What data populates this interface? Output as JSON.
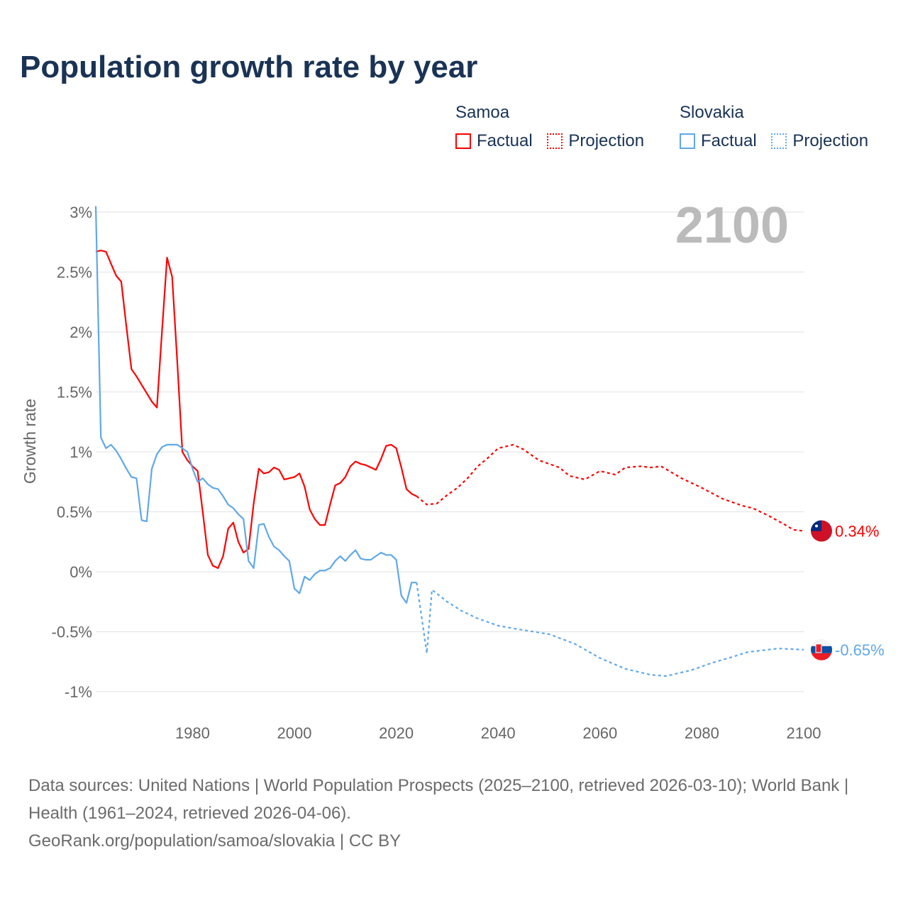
{
  "title": "Population growth rate by year",
  "legend": {
    "groups": [
      {
        "name": "Samoa",
        "color": "#ff0000",
        "factual": "Factual",
        "projection": "Projection"
      },
      {
        "name": "Slovakia",
        "color": "#5fa8ea",
        "factual": "Factual",
        "projection": "Projection"
      }
    ]
  },
  "footer": {
    "sources": "Data sources: United Nations | World Population Prospects (2025–2100, retrieved 2026-03-10); World Bank | Health (1961–2024, retrieved 2026-04-06).",
    "link": "GeoRank.org/population/samoa/slovakia | CC BY"
  },
  "chart_data": {
    "type": "line",
    "title": "Population growth rate by year",
    "ylabel": "Growth rate",
    "xlabel": "",
    "year_label": "2100",
    "xlim": [
      1961,
      2100
    ],
    "ylim": [
      -1.1,
      3.05
    ],
    "x_ticks": [
      "1980",
      "2000",
      "2020",
      "2040",
      "2060",
      "2080",
      "2100"
    ],
    "x_tick_values": [
      1980,
      2000,
      2020,
      2040,
      2060,
      2080,
      2100
    ],
    "y_ticks": [
      "3%",
      "2.5%",
      "2%",
      "1.5%",
      "1%",
      "0.5%",
      "0%",
      "-0.5%",
      "-1%"
    ],
    "y_tick_values": [
      3,
      2.5,
      2,
      1.5,
      1,
      0.5,
      0,
      -0.5,
      -1
    ],
    "grid": true,
    "series": [
      {
        "name": "Samoa",
        "color": "#ff0000",
        "end_label": "0.34%",
        "factual": {
          "x": [
            1961,
            1962,
            1963,
            1964,
            1965,
            1966,
            1967,
            1968,
            1969,
            1970,
            1971,
            1972,
            1973,
            1974,
            1975,
            1976,
            1977,
            1978,
            1979,
            1980,
            1981,
            1982,
            1983,
            1984,
            1985,
            1986,
            1987,
            1988,
            1989,
            1990,
            1991,
            1992,
            1993,
            1994,
            1995,
            1996,
            1997,
            1998,
            1999,
            2000,
            2001,
            2002,
            2003,
            2004,
            2005,
            2006,
            2007,
            2008,
            2009,
            2010,
            2011,
            2012,
            2013,
            2014,
            2015,
            2016,
            2017,
            2018,
            2019,
            2020,
            2021,
            2022,
            2023,
            2024
          ],
          "y": [
            2.67,
            2.68,
            2.67,
            2.57,
            2.47,
            2.42,
            2.05,
            1.69,
            1.63,
            1.56,
            1.49,
            1.42,
            1.37,
            2.0,
            2.62,
            2.46,
            1.75,
            1.0,
            0.93,
            0.88,
            0.84,
            0.5,
            0.14,
            0.05,
            0.03,
            0.13,
            0.36,
            0.41,
            0.25,
            0.16,
            0.19,
            0.57,
            0.86,
            0.82,
            0.83,
            0.87,
            0.85,
            0.77,
            0.78,
            0.79,
            0.82,
            0.71,
            0.52,
            0.44,
            0.39,
            0.39,
            0.56,
            0.72,
            0.74,
            0.79,
            0.88,
            0.92,
            0.9,
            0.89,
            0.87,
            0.85,
            0.94,
            1.05,
            1.06,
            1.03,
            0.87,
            0.69,
            0.65,
            0.63
          ]
        },
        "projection": {
          "x": [
            2024,
            2026,
            2028,
            2030,
            2032,
            2034,
            2036,
            2038,
            2040,
            2043,
            2045,
            2048,
            2052,
            2054,
            2057,
            2060,
            2063,
            2065,
            2068,
            2070,
            2072,
            2074,
            2076,
            2080,
            2084,
            2088,
            2090,
            2093,
            2096,
            2098,
            2100
          ],
          "y": [
            0.63,
            0.56,
            0.57,
            0.64,
            0.7,
            0.78,
            0.88,
            0.95,
            1.03,
            1.06,
            1.02,
            0.93,
            0.87,
            0.8,
            0.77,
            0.84,
            0.81,
            0.87,
            0.88,
            0.87,
            0.88,
            0.83,
            0.78,
            0.7,
            0.61,
            0.55,
            0.53,
            0.47,
            0.4,
            0.35,
            0.34
          ]
        }
      },
      {
        "name": "Slovakia",
        "color": "#5fa8ea",
        "end_label": "-0.65%",
        "factual": {
          "x": [
            1961,
            1962,
            1963,
            1964,
            1965,
            1966,
            1967,
            1968,
            1969,
            1970,
            1971,
            1972,
            1973,
            1974,
            1975,
            1976,
            1977,
            1978,
            1979,
            1980,
            1981,
            1982,
            1983,
            1984,
            1985,
            1986,
            1987,
            1988,
            1989,
            1990,
            1991,
            1992,
            1993,
            1994,
            1995,
            1996,
            1997,
            1998,
            1999,
            2000,
            2001,
            2002,
            2003,
            2004,
            2005,
            2006,
            2007,
            2008,
            2009,
            2010,
            2011,
            2012,
            2013,
            2014,
            2015,
            2016,
            2017,
            2018,
            2019,
            2020,
            2021,
            2022,
            2023,
            2024
          ],
          "y": [
            3.05,
            1.12,
            1.03,
            1.06,
            1.01,
            0.94,
            0.86,
            0.79,
            0.78,
            0.43,
            0.42,
            0.86,
            0.98,
            1.04,
            1.06,
            1.06,
            1.06,
            1.03,
            1.0,
            0.86,
            0.75,
            0.78,
            0.73,
            0.7,
            0.69,
            0.63,
            0.56,
            0.53,
            0.48,
            0.44,
            0.09,
            0.03,
            0.39,
            0.4,
            0.29,
            0.21,
            0.18,
            0.13,
            0.09,
            -0.14,
            -0.18,
            -0.04,
            -0.07,
            -0.02,
            0.01,
            0.01,
            0.03,
            0.09,
            0.13,
            0.09,
            0.14,
            0.18,
            0.11,
            0.1,
            0.1,
            0.13,
            0.16,
            0.14,
            0.14,
            0.1,
            -0.2,
            -0.26,
            -0.09,
            -0.09
          ]
        },
        "projection": {
          "x": [
            2024,
            2026,
            2027,
            2030,
            2033,
            2036,
            2040,
            2044,
            2050,
            2055,
            2060,
            2065,
            2070,
            2073,
            2078,
            2082,
            2086,
            2089,
            2095,
            2100
          ],
          "y": [
            -0.09,
            -0.68,
            -0.15,
            -0.25,
            -0.33,
            -0.39,
            -0.45,
            -0.48,
            -0.52,
            -0.6,
            -0.72,
            -0.81,
            -0.86,
            -0.87,
            -0.82,
            -0.76,
            -0.71,
            -0.67,
            -0.64,
            -0.65
          ]
        }
      }
    ]
  }
}
